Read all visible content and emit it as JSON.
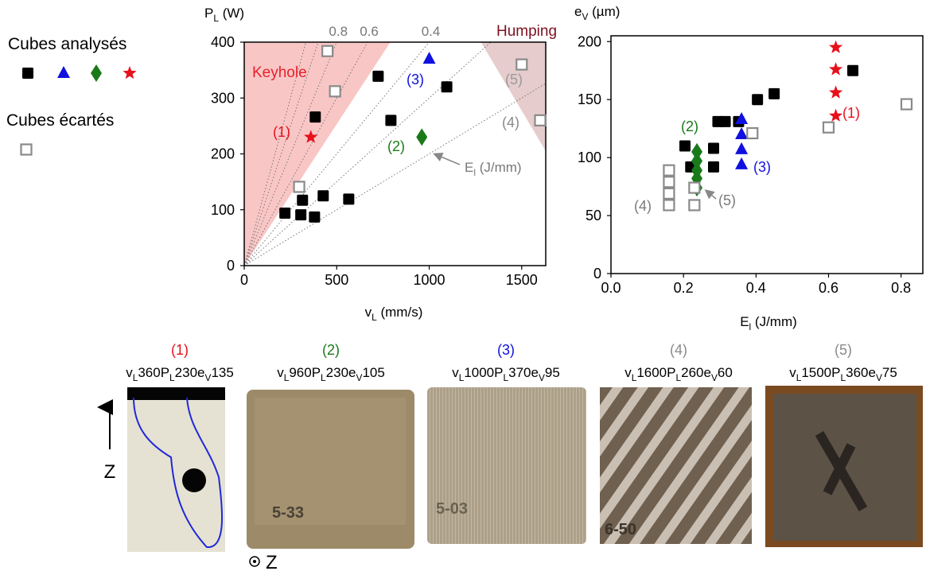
{
  "legend": {
    "analysed": "Cubes analysés",
    "rejected": "Cubes écartés"
  },
  "chart_data": [
    {
      "type": "scatter",
      "xlabel": [
        [
          "v",
          "L",
          " (mm/s)"
        ]
      ],
      "ylabel": [
        [
          "P",
          "L",
          " (W)"
        ]
      ],
      "xlim": [
        0,
        1630
      ],
      "ylim": [
        0,
        400
      ],
      "xticks": [
        0,
        500,
        1000,
        1500
      ],
      "yticks": [
        0,
        100,
        200,
        300,
        400
      ],
      "iso_energy": {
        "labeled": [
          0.8,
          0.6,
          0.4
        ],
        "unlabeled": [
          1.2,
          1.0,
          0.3,
          0.2
        ],
        "color": "#777777"
      },
      "energy_label": [
        [
          "E",
          "l",
          " (J/mm)"
        ]
      ],
      "regions": [
        {
          "name": "Keyhole",
          "color": "#f9c6c6",
          "text_color": "#e8202a",
          "x": [
            0,
            0,
            790
          ],
          "y": [
            0,
            400,
            400
          ]
        },
        {
          "name": "Humping",
          "color": "#e6cccc",
          "text_color": "#7a1020",
          "x": [
            1280,
            1630,
            1630
          ],
          "y": [
            400,
            400,
            205
          ]
        }
      ],
      "series": [
        {
          "marker": "square",
          "color": "#000000",
          "x": [
            220,
            306,
            315,
            384,
            380,
            427,
            565,
            724,
            793,
            1095
          ],
          "values": [
            94,
            91,
            117,
            266,
            87,
            125,
            119,
            339,
            260,
            320
          ]
        },
        {
          "marker": "triangle",
          "color": "#1010e0",
          "x": [
            1000
          ],
          "values": [
            370
          ]
        },
        {
          "marker": "diamond",
          "color": "#1a7a1a",
          "x": [
            960
          ],
          "values": [
            230
          ]
        },
        {
          "marker": "star",
          "color": "#e8101a",
          "x": [
            360
          ],
          "values": [
            230
          ]
        },
        {
          "marker": "open-square",
          "color": "#8a8a8a",
          "x": [
            450,
            491,
            297,
            1500,
            1600
          ],
          "values": [
            384,
            312,
            141,
            360,
            260
          ]
        }
      ],
      "annotations": [
        {
          "text": "(1)",
          "color": "#e8101a"
        },
        {
          "text": "(2)",
          "color": "#1a7a1a"
        },
        {
          "text": "(3)",
          "color": "#1010e0"
        },
        {
          "text": "(4)",
          "color": "#8a8a8a"
        },
        {
          "text": "(5)",
          "color": "#9a9a9a"
        }
      ]
    },
    {
      "type": "scatter",
      "xlabel": [
        [
          "E",
          "l",
          " (J/mm)"
        ]
      ],
      "ylabel": [
        [
          "e",
          "V",
          " (µm)"
        ]
      ],
      "xlim": [
        0,
        0.86
      ],
      "ylim": [
        0,
        205
      ],
      "xticks": [
        {
          "value": 0,
          "label": "0.0"
        },
        0.2,
        0.4,
        0.6,
        0.8
      ],
      "yticks": [
        0,
        50,
        100,
        150,
        200
      ],
      "series": [
        {
          "marker": "square",
          "color": "#000000",
          "x": [
            0.204,
            0.22,
            0.283,
            0.283,
            0.295,
            0.315,
            0.352,
            0.404,
            0.45,
            0.667
          ],
          "values": [
            110,
            92,
            108,
            92,
            131,
            131,
            131,
            150,
            155,
            175
          ]
        },
        {
          "marker": "triangle",
          "color": "#1010e0",
          "x": [
            0.36,
            0.36,
            0.36,
            0.36
          ],
          "values": [
            133,
            120,
            107,
            94
          ]
        },
        {
          "marker": "diamond",
          "color": "#1a7a1a",
          "x": [
            0.237,
            0.237,
            0.237,
            0.237,
            0.237
          ],
          "values": [
            105,
            97,
            89,
            82,
            74
          ]
        },
        {
          "marker": "star",
          "color": "#e8101a",
          "x": [
            0.62,
            0.62,
            0.62,
            0.62
          ],
          "values": [
            195,
            176,
            156,
            136
          ]
        },
        {
          "marker": "open-square",
          "color": "#8a8a8a",
          "x": [
            0.16,
            0.16,
            0.16,
            0.16,
            0.23,
            0.23,
            0.39,
            0.6,
            0.815
          ],
          "values": [
            89,
            79,
            69,
            59,
            74,
            59,
            121,
            126,
            146
          ]
        }
      ],
      "annotations": [
        {
          "text": "(1)",
          "color": "#e8101a"
        },
        {
          "text": "(2)",
          "color": "#1a7a1a"
        },
        {
          "text": "(3)",
          "color": "#1010e0"
        },
        {
          "text": "(4)",
          "color": "#7a7a7a"
        },
        {
          "text": "(5)",
          "color": "#7a7a7a"
        }
      ]
    }
  ],
  "panels": [
    {
      "number": "(1)",
      "color": "#e8101a",
      "caption": [
        [
          "v",
          "L",
          "360"
        ],
        [
          "P",
          "L",
          "230"
        ],
        [
          "e",
          "V",
          "135"
        ]
      ]
    },
    {
      "number": "(2)",
      "color": "#1a7a1a",
      "caption": [
        [
          "v",
          "L",
          "960"
        ],
        [
          "P",
          "L",
          "230"
        ],
        [
          "e",
          "V",
          "105"
        ]
      ]
    },
    {
      "number": "(3)",
      "color": "#1010e0",
      "caption": [
        [
          "v",
          "L",
          "1000"
        ],
        [
          "P",
          "L",
          "370"
        ],
        [
          "e",
          "V",
          "95"
        ]
      ]
    },
    {
      "number": "(4)",
      "color": "#8a8a8a",
      "caption": [
        [
          "v",
          "L",
          "1600"
        ],
        [
          "P",
          "L",
          "260"
        ],
        [
          "e",
          "V",
          "60"
        ]
      ]
    },
    {
      "number": "(5)",
      "color": "#8a8a8a",
      "caption": [
        [
          "v",
          "L",
          "1500"
        ],
        [
          "P",
          "L",
          "360"
        ],
        [
          "e",
          "V",
          "75"
        ]
      ]
    }
  ],
  "inscriptions": [
    "5-33",
    "5-03",
    "6-50"
  ],
  "axis_marks": {
    "build_direction": "Z",
    "normal": "Z"
  }
}
